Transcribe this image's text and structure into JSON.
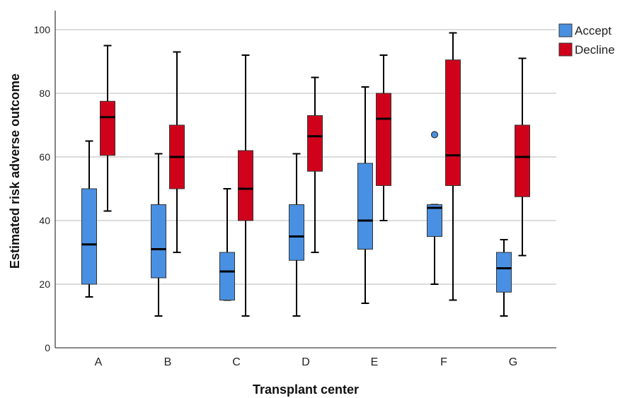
{
  "chart_data": {
    "type": "boxplot",
    "xlabel": "Transplant center",
    "ylabel": "Estimated risk adverse outcome",
    "ylim": [
      0,
      100
    ],
    "yticks": [
      0,
      20,
      40,
      60,
      80,
      100
    ],
    "grid": "horizontal",
    "legend_position": "top-right",
    "categories": [
      "A",
      "B",
      "C",
      "D",
      "E",
      "F",
      "G"
    ],
    "series": [
      {
        "name": "Accept",
        "color": "#4a90e2",
        "boxes": [
          {
            "min": 16,
            "q1": 20,
            "median": 32.5,
            "q3": 50,
            "max": 65,
            "outliers": []
          },
          {
            "min": 10,
            "q1": 22,
            "median": 31,
            "q3": 45,
            "max": 61,
            "outliers": []
          },
          {
            "min": 15,
            "q1": 15,
            "median": 24,
            "q3": 30,
            "max": 50,
            "outliers": []
          },
          {
            "min": 10,
            "q1": 27.5,
            "median": 35,
            "q3": 45,
            "max": 61,
            "outliers": []
          },
          {
            "min": 14,
            "q1": 31,
            "median": 40,
            "q3": 58,
            "max": 82,
            "outliers": []
          },
          {
            "min": 20,
            "q1": 35,
            "median": 44,
            "q3": 45,
            "max": 45,
            "outliers": [
              67
            ]
          },
          {
            "min": 10,
            "q1": 17.5,
            "median": 25,
            "q3": 30,
            "max": 34,
            "outliers": []
          }
        ]
      },
      {
        "name": "Decline",
        "color": "#d0021b",
        "boxes": [
          {
            "min": 43,
            "q1": 60.5,
            "median": 72.5,
            "q3": 77.5,
            "max": 95,
            "outliers": []
          },
          {
            "min": 30,
            "q1": 50,
            "median": 60,
            "q3": 70,
            "max": 93,
            "outliers": []
          },
          {
            "min": 10,
            "q1": 40,
            "median": 50,
            "q3": 62,
            "max": 92,
            "outliers": []
          },
          {
            "min": 30,
            "q1": 55.5,
            "median": 66.5,
            "q3": 73,
            "max": 85,
            "outliers": []
          },
          {
            "min": 40,
            "q1": 51,
            "median": 72,
            "q3": 80,
            "max": 92,
            "outliers": []
          },
          {
            "min": 15,
            "q1": 51,
            "median": 60.5,
            "q3": 90.5,
            "max": 99,
            "outliers": []
          },
          {
            "min": 29,
            "q1": 47.5,
            "median": 60,
            "q3": 70,
            "max": 91,
            "outliers": []
          }
        ]
      }
    ]
  }
}
